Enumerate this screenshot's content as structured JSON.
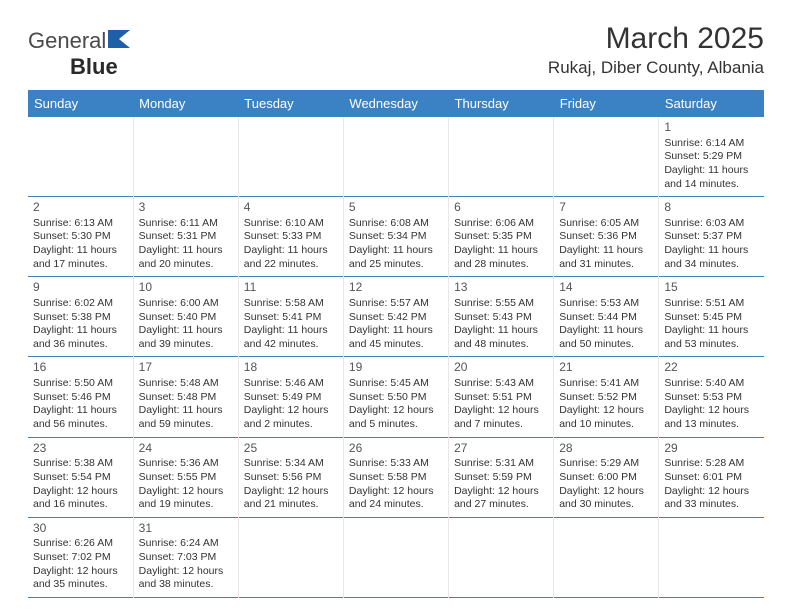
{
  "logo": {
    "part1": "General",
    "part2": "Blue",
    "icon_color": "#1f5fa8"
  },
  "title": "March 2025",
  "location": "Rukaj, Diber County, Albania",
  "colors": {
    "header_bg": "#3b82c4",
    "header_text": "#ffffff",
    "row_border": "#3b82c4",
    "cell_border": "#e8e8e8",
    "text": "#333333"
  },
  "dayHeaders": [
    "Sunday",
    "Monday",
    "Tuesday",
    "Wednesday",
    "Thursday",
    "Friday",
    "Saturday"
  ],
  "weeks": [
    [
      null,
      null,
      null,
      null,
      null,
      null,
      {
        "d": "1",
        "sr": "6:14 AM",
        "ss": "5:29 PM",
        "dl": "11 hours and 14 minutes."
      }
    ],
    [
      {
        "d": "2",
        "sr": "6:13 AM",
        "ss": "5:30 PM",
        "dl": "11 hours and 17 minutes."
      },
      {
        "d": "3",
        "sr": "6:11 AM",
        "ss": "5:31 PM",
        "dl": "11 hours and 20 minutes."
      },
      {
        "d": "4",
        "sr": "6:10 AM",
        "ss": "5:33 PM",
        "dl": "11 hours and 22 minutes."
      },
      {
        "d": "5",
        "sr": "6:08 AM",
        "ss": "5:34 PM",
        "dl": "11 hours and 25 minutes."
      },
      {
        "d": "6",
        "sr": "6:06 AM",
        "ss": "5:35 PM",
        "dl": "11 hours and 28 minutes."
      },
      {
        "d": "7",
        "sr": "6:05 AM",
        "ss": "5:36 PM",
        "dl": "11 hours and 31 minutes."
      },
      {
        "d": "8",
        "sr": "6:03 AM",
        "ss": "5:37 PM",
        "dl": "11 hours and 34 minutes."
      }
    ],
    [
      {
        "d": "9",
        "sr": "6:02 AM",
        "ss": "5:38 PM",
        "dl": "11 hours and 36 minutes."
      },
      {
        "d": "10",
        "sr": "6:00 AM",
        "ss": "5:40 PM",
        "dl": "11 hours and 39 minutes."
      },
      {
        "d": "11",
        "sr": "5:58 AM",
        "ss": "5:41 PM",
        "dl": "11 hours and 42 minutes."
      },
      {
        "d": "12",
        "sr": "5:57 AM",
        "ss": "5:42 PM",
        "dl": "11 hours and 45 minutes."
      },
      {
        "d": "13",
        "sr": "5:55 AM",
        "ss": "5:43 PM",
        "dl": "11 hours and 48 minutes."
      },
      {
        "d": "14",
        "sr": "5:53 AM",
        "ss": "5:44 PM",
        "dl": "11 hours and 50 minutes."
      },
      {
        "d": "15",
        "sr": "5:51 AM",
        "ss": "5:45 PM",
        "dl": "11 hours and 53 minutes."
      }
    ],
    [
      {
        "d": "16",
        "sr": "5:50 AM",
        "ss": "5:46 PM",
        "dl": "11 hours and 56 minutes."
      },
      {
        "d": "17",
        "sr": "5:48 AM",
        "ss": "5:48 PM",
        "dl": "11 hours and 59 minutes."
      },
      {
        "d": "18",
        "sr": "5:46 AM",
        "ss": "5:49 PM",
        "dl": "12 hours and 2 minutes."
      },
      {
        "d": "19",
        "sr": "5:45 AM",
        "ss": "5:50 PM",
        "dl": "12 hours and 5 minutes."
      },
      {
        "d": "20",
        "sr": "5:43 AM",
        "ss": "5:51 PM",
        "dl": "12 hours and 7 minutes."
      },
      {
        "d": "21",
        "sr": "5:41 AM",
        "ss": "5:52 PM",
        "dl": "12 hours and 10 minutes."
      },
      {
        "d": "22",
        "sr": "5:40 AM",
        "ss": "5:53 PM",
        "dl": "12 hours and 13 minutes."
      }
    ],
    [
      {
        "d": "23",
        "sr": "5:38 AM",
        "ss": "5:54 PM",
        "dl": "12 hours and 16 minutes."
      },
      {
        "d": "24",
        "sr": "5:36 AM",
        "ss": "5:55 PM",
        "dl": "12 hours and 19 minutes."
      },
      {
        "d": "25",
        "sr": "5:34 AM",
        "ss": "5:56 PM",
        "dl": "12 hours and 21 minutes."
      },
      {
        "d": "26",
        "sr": "5:33 AM",
        "ss": "5:58 PM",
        "dl": "12 hours and 24 minutes."
      },
      {
        "d": "27",
        "sr": "5:31 AM",
        "ss": "5:59 PM",
        "dl": "12 hours and 27 minutes."
      },
      {
        "d": "28",
        "sr": "5:29 AM",
        "ss": "6:00 PM",
        "dl": "12 hours and 30 minutes."
      },
      {
        "d": "29",
        "sr": "5:28 AM",
        "ss": "6:01 PM",
        "dl": "12 hours and 33 minutes."
      }
    ],
    [
      {
        "d": "30",
        "sr": "6:26 AM",
        "ss": "7:02 PM",
        "dl": "12 hours and 35 minutes."
      },
      {
        "d": "31",
        "sr": "6:24 AM",
        "ss": "7:03 PM",
        "dl": "12 hours and 38 minutes."
      },
      null,
      null,
      null,
      null,
      null
    ]
  ],
  "labels": {
    "sunrise": "Sunrise: ",
    "sunset": "Sunset: ",
    "daylight": "Daylight: "
  }
}
